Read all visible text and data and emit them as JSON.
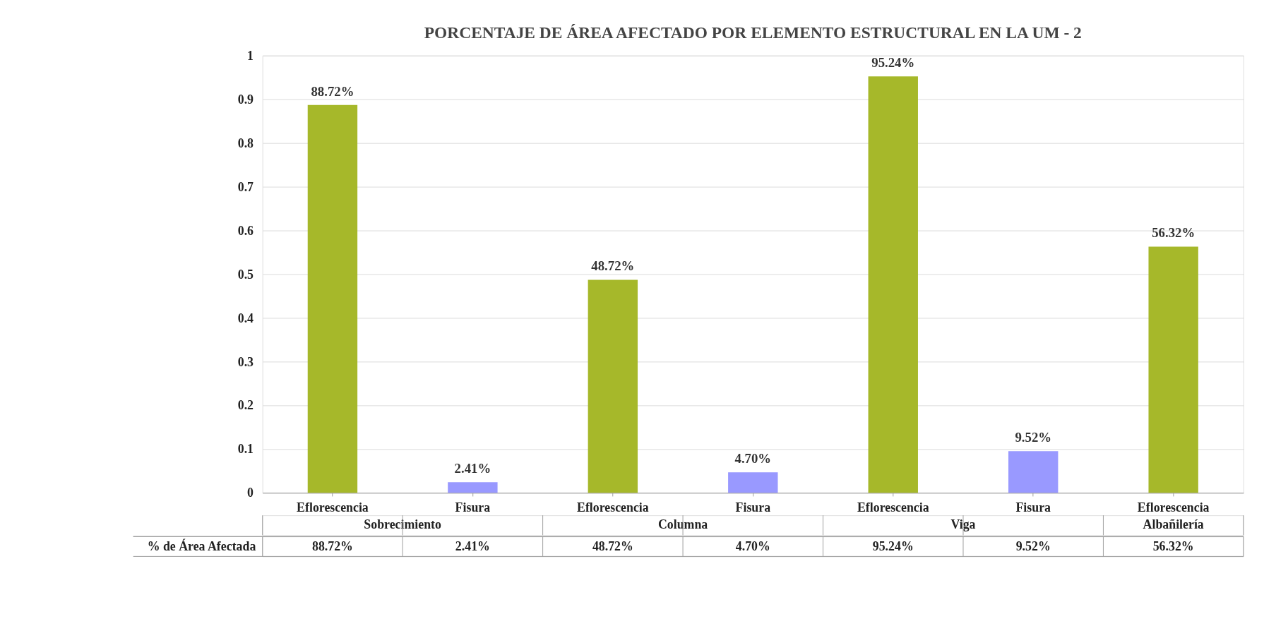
{
  "chart_data": {
    "type": "bar",
    "title": "PORCENTAJE DE ÁREA AFECTADO POR ELEMENTO ESTRUCTURAL EN LA UM - 2",
    "categories": [
      "Eflorescencia",
      "Fisura",
      "Eflorescencia",
      "Fisura",
      "Eflorescencia",
      "Fisura",
      "Eflorescencia"
    ],
    "series": [
      {
        "name": "% de Área Afectada",
        "values": [
          0.8872,
          0.0241,
          0.4872,
          0.047,
          0.9524,
          0.0952,
          0.5632
        ]
      }
    ],
    "colors": [
      "#a6b82a",
      "#9999ff",
      "#a6b82a",
      "#9999ff",
      "#a6b82a",
      "#9999ff",
      "#a6b82a"
    ],
    "value_labels": [
      "88.72%",
      "2.41%",
      "48.72%",
      "4.70%",
      "95.24%",
      "9.52%",
      "56.32%"
    ],
    "annotations": [
      "Sobrecimiento",
      "Columna",
      "Viga",
      "Albañilería"
    ],
    "ylim": [
      0,
      1
    ],
    "yticks": [
      0,
      0.1,
      0.2,
      0.3,
      0.4,
      0.5,
      0.6,
      0.7,
      0.8,
      0.9,
      1
    ],
    "grid": "y"
  }
}
